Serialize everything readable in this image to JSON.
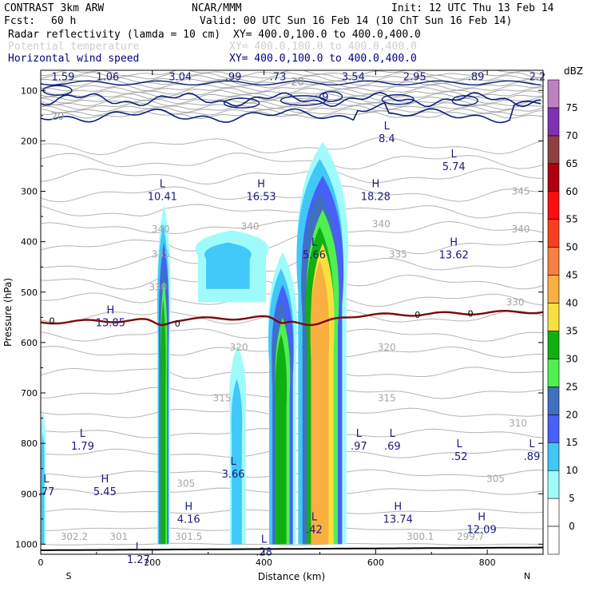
{
  "header": {
    "model": "CONTRAST  3km ARW",
    "org": "NCAR/MMM",
    "init": "Init: 12 UTC Thu 13 Feb 14",
    "fcst_label": "Fcst:",
    "fcst_value": "60 h",
    "valid": "Valid: 00 UTC Sun 16 Feb 14 (10 ChT Sun 16 Feb 14)",
    "fields": [
      {
        "name": "Radar reflectivity (lamda = 10 cm)",
        "xy": "XY= 400.0,100.0 to 400.0,400.0",
        "color": "#000000"
      },
      {
        "name": "Potential temperature",
        "xy": "XY= 400.0,100.0 to 400.0,400.0",
        "color": "#cfcfcf"
      },
      {
        "name": "Horizontal wind speed",
        "xy": "XY= 400.0,100.0 to 400.0,400.0",
        "color": "#000080"
      }
    ]
  },
  "chart_data": {
    "type": "cross-section",
    "xlabel": "Distance (km)",
    "ylabel": "Pressure (hPa)",
    "xlim": [
      0,
      900
    ],
    "ylim": [
      1020,
      60
    ],
    "x_ticks": [
      0,
      200,
      400,
      600,
      800
    ],
    "y_ticks": [
      100,
      200,
      300,
      400,
      500,
      600,
      700,
      800,
      900,
      1000
    ],
    "x_end_labels": {
      "left": "S",
      "right": "N"
    },
    "colorbar": {
      "unit": "dBZ",
      "levels": [
        0,
        5,
        10,
        15,
        20,
        25,
        30,
        35,
        40,
        45,
        50,
        55,
        60,
        65,
        70,
        75
      ],
      "colors": [
        "#ffffff",
        "#9ffbfb",
        "#40c8f8",
        "#4860f8",
        "#4070c0",
        "#50f050",
        "#10b010",
        "#f8e040",
        "#f8b040",
        "#f88040",
        "#f84020",
        "#f81010",
        "#b00010",
        "#904040",
        "#8030b0",
        "#c080c0"
      ]
    },
    "reflectivity_columns": [
      {
        "x_range": [
          209,
          231
        ],
        "p_top": 290,
        "p_bottom": 1000,
        "max_dbz": 30
      },
      {
        "x_range": [
          278,
          400
        ],
        "p_top": 370,
        "p_bottom": 520,
        "max_dbz": 10
      },
      {
        "x_range": [
          338,
          366
        ],
        "p_top": 585,
        "p_bottom": 1000,
        "max_dbz": 10
      },
      {
        "x_range": [
          408,
          456
        ],
        "p_top": 390,
        "p_bottom": 1000,
        "max_dbz": 30
      },
      {
        "x_range": [
          460,
          545
        ],
        "p_top": 160,
        "p_bottom": 1000,
        "max_dbz": 40
      },
      {
        "x_range": [
          0,
          8
        ],
        "p_top": 720,
        "p_bottom": 1000,
        "max_dbz": 10
      }
    ],
    "freezing_level_label": "0",
    "theta_labels": [
      {
        "value": "345",
        "x": 860,
        "p": 300
      },
      {
        "value": "340",
        "x": 215,
        "p": 375
      },
      {
        "value": "340",
        "x": 375,
        "p": 370
      },
      {
        "value": "340",
        "x": 610,
        "p": 365
      },
      {
        "value": "340",
        "x": 860,
        "p": 375
      },
      {
        "value": "335",
        "x": 215,
        "p": 425
      },
      {
        "value": "335",
        "x": 640,
        "p": 425
      },
      {
        "value": "330",
        "x": 210,
        "p": 490
      },
      {
        "value": "330",
        "x": 850,
        "p": 520
      },
      {
        "value": "320",
        "x": 355,
        "p": 610
      },
      {
        "value": "320",
        "x": 620,
        "p": 610
      },
      {
        "value": "315",
        "x": 325,
        "p": 710
      },
      {
        "value": "315",
        "x": 620,
        "p": 710
      },
      {
        "value": "310",
        "x": 855,
        "p": 760
      },
      {
        "value": "305",
        "x": 260,
        "p": 880
      },
      {
        "value": "305",
        "x": 815,
        "p": 870
      },
      {
        "value": "302.2",
        "x": 60,
        "p": 985
      },
      {
        "value": "301",
        "x": 140,
        "p": 985
      },
      {
        "value": "301.5",
        "x": 265,
        "p": 985
      },
      {
        "value": "300.1",
        "x": 680,
        "p": 985
      },
      {
        "value": "299.7",
        "x": 770,
        "p": 985
      }
    ],
    "wind_contour_labels": [
      "20",
      "20",
      "9"
    ],
    "top_values": [
      {
        "value": "1.59",
        "x": 40
      },
      {
        "value": "1.06",
        "x": 120
      },
      {
        "value": "3.04",
        "x": 250
      },
      {
        "value": ".99",
        "x": 345
      },
      {
        "value": ".73",
        "x": 425
      },
      {
        "value": "3.54",
        "x": 560
      },
      {
        "value": "2.95",
        "x": 670
      },
      {
        "value": ".89",
        "x": 780
      },
      {
        "value": "2.2",
        "x": 890
      }
    ],
    "extrema": [
      {
        "type": "L",
        "value": "8.4",
        "x": 620,
        "p": 190
      },
      {
        "type": "L",
        "value": "5.74",
        "x": 740,
        "p": 245
      },
      {
        "type": "L",
        "value": "10.41",
        "x": 218,
        "p": 305
      },
      {
        "type": "H",
        "value": "16.53",
        "x": 395,
        "p": 305
      },
      {
        "type": "H",
        "value": "18.28",
        "x": 600,
        "p": 305
      },
      {
        "type": "L",
        "value": "5.66",
        "x": 490,
        "p": 420
      },
      {
        "type": "H",
        "value": "13.62",
        "x": 740,
        "p": 420
      },
      {
        "type": "H",
        "value": "13.85",
        "x": 125,
        "p": 555
      },
      {
        "type": "L",
        "value": "1.79",
        "x": 75,
        "p": 800
      },
      {
        "type": "L",
        "value": ".97",
        "x": 570,
        "p": 800
      },
      {
        "type": "L",
        "value": ".69",
        "x": 630,
        "p": 800
      },
      {
        "type": "L",
        "value": ".52",
        "x": 750,
        "p": 820
      },
      {
        "type": "L",
        "value": ".89",
        "x": 880,
        "p": 820
      },
      {
        "type": "L",
        "value": ".77",
        "x": 10,
        "p": 890
      },
      {
        "type": "H",
        "value": "5.45",
        "x": 115,
        "p": 890
      },
      {
        "type": "L",
        "value": "3.66",
        "x": 345,
        "p": 855
      },
      {
        "type": "H",
        "value": "4.16",
        "x": 265,
        "p": 945
      },
      {
        "type": "L",
        "value": ".42",
        "x": 490,
        "p": 965
      },
      {
        "type": "H",
        "value": "13.74",
        "x": 640,
        "p": 945
      },
      {
        "type": "H",
        "value": "12.09",
        "x": 790,
        "p": 965
      },
      {
        "type": "L",
        "value": "1.27",
        "x": 175,
        "p": 1025
      },
      {
        "type": "L",
        "value": ".28",
        "x": 400,
        "p": 1010
      }
    ]
  }
}
